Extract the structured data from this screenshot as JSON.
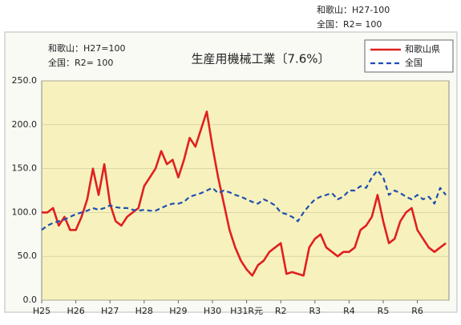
{
  "chart_data": {
    "type": "line",
    "title": "生産用機械工業〔7.6%〕",
    "annotations": [
      "和歌山：H27-100",
      "全国：R2= 100",
      "和歌山：H27=100",
      "全国：R2= 100"
    ],
    "categories": [
      "H25",
      null,
      null,
      null,
      null,
      null,
      "H26",
      null,
      null,
      null,
      null,
      null,
      "H27",
      null,
      null,
      null,
      null,
      null,
      "H28",
      null,
      null,
      null,
      null,
      null,
      "H29",
      null,
      null,
      null,
      null,
      null,
      "H30",
      null,
      null,
      null,
      null,
      null,
      "H31R元",
      null,
      null,
      null,
      null,
      null,
      "R2",
      null,
      null,
      null,
      null,
      null,
      "R3",
      null,
      null,
      null,
      null,
      null,
      "R4",
      null,
      null,
      null,
      null,
      null,
      "R5",
      null,
      null,
      null,
      null,
      null,
      "R6",
      null,
      null,
      null,
      null,
      null
    ],
    "series": [
      {
        "name": "和歌山県",
        "color": "#e02020",
        "dash": false,
        "values": [
          100,
          100,
          105,
          85,
          95,
          80,
          80,
          95,
          115,
          150,
          120,
          155,
          110,
          90,
          85,
          95,
          100,
          105,
          130,
          140,
          150,
          170,
          155,
          160,
          140,
          160,
          185,
          175,
          195,
          215,
          175,
          140,
          110,
          80,
          60,
          45,
          35,
          28,
          40,
          45,
          55,
          60,
          65,
          30,
          32,
          30,
          28,
          60,
          70,
          75,
          60,
          55,
          50,
          55,
          55,
          60,
          80,
          85,
          95,
          120,
          90,
          65,
          70,
          90,
          100,
          105,
          80,
          70,
          60,
          55,
          60,
          65
        ]
      },
      {
        "name": "全国",
        "color": "#1f4fb0",
        "dash": true,
        "values": [
          80,
          85,
          88,
          90,
          92,
          95,
          98,
          100,
          102,
          105,
          103,
          105,
          108,
          106,
          105,
          105,
          103,
          102,
          103,
          102,
          102,
          105,
          108,
          110,
          110,
          112,
          118,
          120,
          122,
          125,
          128,
          122,
          125,
          123,
          120,
          118,
          115,
          112,
          110,
          115,
          112,
          108,
          100,
          98,
          95,
          90,
          100,
          108,
          115,
          118,
          120,
          122,
          115,
          118,
          125,
          125,
          130,
          128,
          140,
          148,
          140,
          120,
          125,
          122,
          118,
          115,
          120,
          115,
          118,
          110,
          128,
          120
        ]
      }
    ],
    "ylim": [
      0,
      250
    ],
    "yticks": [
      {
        "value": 0,
        "label": "0.0"
      },
      {
        "value": 50,
        "label": "50.0"
      },
      {
        "value": 100,
        "label": "100.0"
      },
      {
        "value": 150,
        "label": "150.0"
      },
      {
        "value": 200,
        "label": "200.0"
      },
      {
        "value": 250,
        "label": "250.0"
      }
    ],
    "grid": true,
    "legend": "top-right"
  }
}
